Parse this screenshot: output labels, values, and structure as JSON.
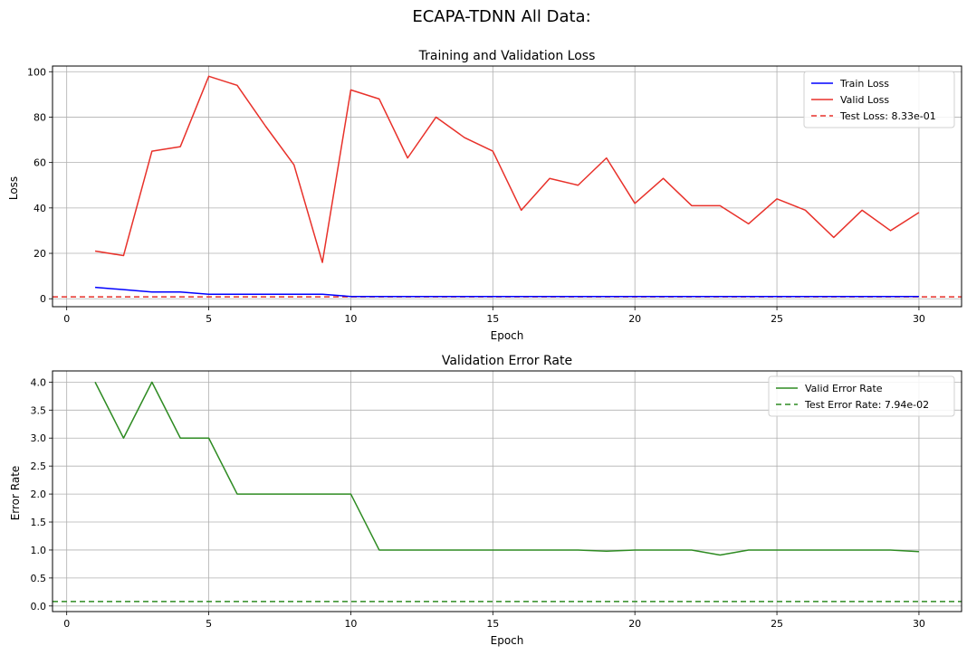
{
  "figure_title": "ECAPA-TDNN All Data:",
  "chart_data": [
    {
      "type": "line",
      "title": "Training and Validation Loss",
      "xlabel": "Epoch",
      "ylabel": "Loss",
      "xlim": [
        -0.5,
        31.5
      ],
      "ylim": [
        -3.5,
        102.5
      ],
      "xticks": [
        0,
        5,
        10,
        15,
        20,
        25,
        30
      ],
      "yticks": [
        0,
        20,
        40,
        60,
        80,
        100
      ],
      "grid": true,
      "legend_position": "upper right",
      "x": [
        1,
        2,
        3,
        4,
        5,
        6,
        7,
        8,
        9,
        10,
        11,
        12,
        13,
        14,
        15,
        16,
        17,
        18,
        19,
        20,
        21,
        22,
        23,
        24,
        25,
        26,
        27,
        28,
        29,
        30
      ],
      "series": [
        {
          "name": "Train Loss",
          "color": "#0000ff",
          "style": "solid",
          "values": [
            5.0,
            4.0,
            3.0,
            3.0,
            2.0,
            2.0,
            2.0,
            2.0,
            2.0,
            1.0,
            1.0,
            1.0,
            1.0,
            1.0,
            1.0,
            1.0,
            1.0,
            1.0,
            1.0,
            1.0,
            1.0,
            1.0,
            1.0,
            1.0,
            1.0,
            1.0,
            1.0,
            1.0,
            1.0,
            1.0
          ]
        },
        {
          "name": "Valid Loss",
          "color": "#e8312a",
          "style": "solid",
          "values": [
            21,
            19,
            65,
            67,
            98,
            94,
            76,
            59,
            16,
            92,
            88,
            62,
            80,
            71,
            65,
            39,
            53,
            50,
            62,
            42,
            53,
            41,
            41,
            33,
            44,
            39,
            27,
            39,
            30,
            38
          ]
        }
      ],
      "hlines": [
        {
          "name": "Test Loss: 8.33e-01",
          "value": 0.833,
          "color": "#e8312a",
          "style": "dashed"
        }
      ]
    },
    {
      "type": "line",
      "title": "Validation Error Rate",
      "xlabel": "Epoch",
      "ylabel": "Error Rate",
      "xlim": [
        -0.5,
        31.5
      ],
      "ylim": [
        -0.1,
        4.2
      ],
      "xticks": [
        0,
        5,
        10,
        15,
        20,
        25,
        30
      ],
      "yticks": [
        0.0,
        0.5,
        1.0,
        1.5,
        2.0,
        2.5,
        3.0,
        3.5,
        4.0
      ],
      "ytick_decimals": 1,
      "grid": true,
      "legend_position": "upper right",
      "x": [
        1,
        2,
        3,
        4,
        5,
        6,
        7,
        8,
        9,
        10,
        11,
        12,
        13,
        14,
        15,
        16,
        17,
        18,
        19,
        20,
        21,
        22,
        23,
        24,
        25,
        26,
        27,
        28,
        29,
        30
      ],
      "series": [
        {
          "name": "Valid Error Rate",
          "color": "#2e8b22",
          "style": "solid",
          "values": [
            4.0,
            3.0,
            4.0,
            3.0,
            3.0,
            2.0,
            2.0,
            2.0,
            2.0,
            2.0,
            1.0,
            1.0,
            1.0,
            1.0,
            1.0,
            1.0,
            1.0,
            1.0,
            0.98,
            1.0,
            1.0,
            1.0,
            0.91,
            1.0,
            1.0,
            1.0,
            1.0,
            1.0,
            1.0,
            0.97
          ]
        }
      ],
      "hlines": [
        {
          "name": "Test Error Rate: 7.94e-02",
          "value": 0.0794,
          "color": "#2e8b22",
          "style": "dashed"
        }
      ]
    }
  ]
}
